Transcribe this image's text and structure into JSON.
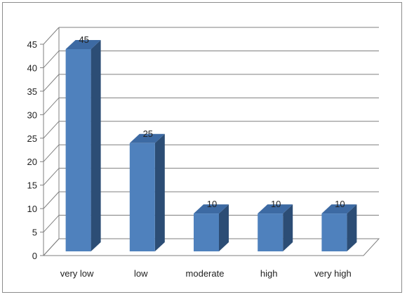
{
  "chart_data": {
    "type": "bar",
    "categories": [
      "very low",
      "low",
      "moderate",
      "high",
      "very high"
    ],
    "values": [
      45,
      25,
      10,
      10,
      10
    ],
    "data_labels": [
      "45",
      "25",
      "10",
      "10",
      "10"
    ],
    "title": "",
    "xlabel": "",
    "ylabel": "",
    "ylim": [
      0,
      45
    ],
    "yticks": [
      "0",
      "5",
      "10",
      "15",
      "20",
      "25",
      "30",
      "35",
      "40",
      "45"
    ],
    "grid": true,
    "legend": "none",
    "style": "3d-column",
    "colors": {
      "bar_front": "#4f81bd",
      "bar_side": "#2c4d75",
      "bar_top": "#3d6aa3",
      "gridline": "#7f7f7f",
      "axis": "#7f7f7f",
      "frame_border": "#8c8c8c"
    }
  }
}
